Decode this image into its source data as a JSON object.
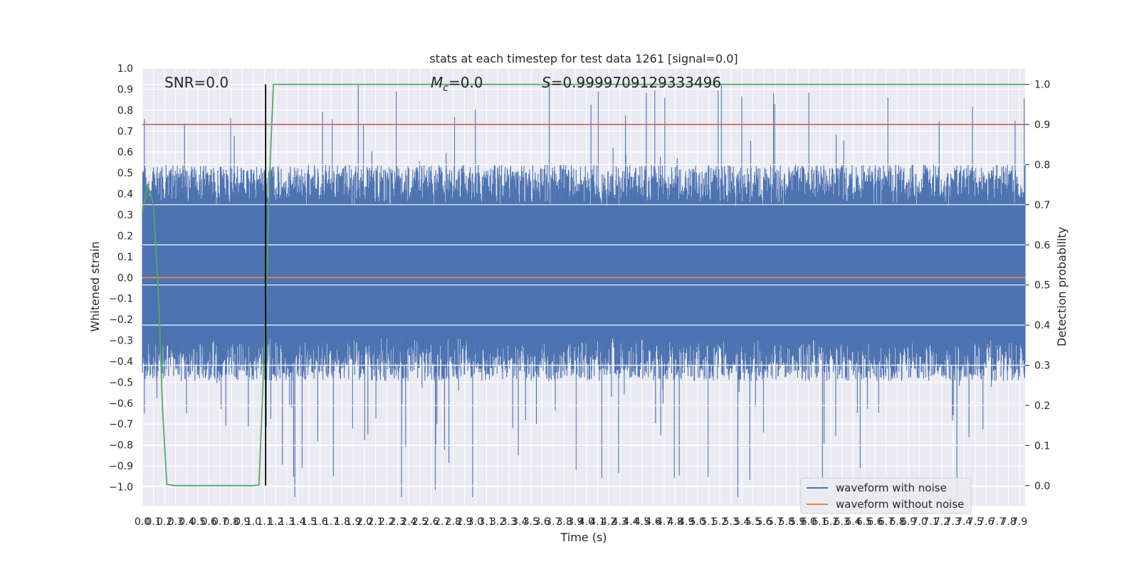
{
  "chart_data": {
    "type": "line",
    "title": "stats at each timestep for test data 1261 [signal=0.0]",
    "xlabel": "Time (s)",
    "ylabel_left": "Whitened strain",
    "ylabel_right": "Detection probability",
    "xlim": [
      0.0,
      7.95
    ],
    "ylim_left": [
      -1.09,
      1.0
    ],
    "ylim_right": [
      -0.05,
      1.04
    ],
    "x_ticks": [
      "0.0",
      "0.1",
      "0.2",
      "0.3",
      "0.4",
      "0.5",
      "0.6",
      "0.7",
      "0.8",
      "0.9",
      "1.0",
      "1.1",
      "1.2",
      "1.3",
      "1.4",
      "1.5",
      "1.6",
      "1.7",
      "1.8",
      "1.9",
      "2.0",
      "2.1",
      "2.2",
      "2.3",
      "2.4",
      "2.5",
      "2.6",
      "2.7",
      "2.8",
      "2.9",
      "3.0",
      "3.1",
      "3.2",
      "3.3",
      "3.4",
      "3.5",
      "3.6",
      "3.7",
      "3.8",
      "3.9",
      "4.0",
      "4.1",
      "4.2",
      "4.3",
      "4.4",
      "4.5",
      "4.6",
      "4.7",
      "4.8",
      "4.9",
      "5.0",
      "5.1",
      "5.2",
      "5.3",
      "5.4",
      "5.5",
      "5.6",
      "5.7",
      "5.8",
      "5.9",
      "6.0",
      "6.1",
      "6.2",
      "6.3",
      "6.4",
      "6.5",
      "6.6",
      "6.7",
      "6.8",
      "6.9",
      "7.0",
      "7.1",
      "7.2",
      "7.3",
      "7.4",
      "7.5",
      "7.6",
      "7.7",
      "7.8",
      "7.9"
    ],
    "y_ticks_left": [
      "1.0",
      "0.9",
      "0.8",
      "0.7",
      "0.6",
      "0.5",
      "0.4",
      "0.3",
      "0.2",
      "0.1",
      "0.0",
      "−0.1",
      "−0.2",
      "−0.3",
      "−0.4",
      "−0.5",
      "−0.6",
      "−0.7",
      "−0.8",
      "−0.9",
      "−1.0"
    ],
    "y_ticks_right": [
      "1.0",
      "0.9",
      "0.8",
      "0.7",
      "0.6",
      "0.5",
      "0.4",
      "0.3",
      "0.2",
      "0.1",
      "0.0"
    ],
    "annotations": {
      "snr": "SNR=0.0",
      "mc_symbol": "M",
      "mc_sub": "c",
      "mc_value": "=0.0",
      "s_symbol": "S",
      "s_value": "=0.9999709129333496"
    },
    "legend": {
      "position": "lower-right",
      "entries": [
        "waveform with noise",
        "waveform without noise"
      ]
    },
    "noise_envelope": {
      "typical_band": [
        -0.38,
        0.45
      ],
      "max_peak": 0.92,
      "min_trough": -1.05
    },
    "threshold_probability": 0.9,
    "marker_time": 1.11,
    "detection_probability": {
      "x": [
        0.0,
        0.05,
        0.1,
        0.15,
        0.18,
        0.22,
        0.3,
        0.5,
        1.0,
        1.05,
        1.1,
        1.15,
        1.18,
        7.95
      ],
      "y": [
        0.68,
        0.75,
        0.7,
        0.45,
        0.2,
        0.003,
        0.0,
        0.0,
        0.0,
        0.002,
        0.35,
        0.8,
        1.0,
        1.0
      ]
    },
    "clean_waveform_value": 0.0,
    "colors": {
      "noise": "#4c72b0",
      "clean": "#dd8452",
      "probability": "#55a868",
      "threshold": "#c44e52",
      "marker": "#000000",
      "plot_bg": "#eaeaf2",
      "grid": "#ffffff"
    }
  }
}
